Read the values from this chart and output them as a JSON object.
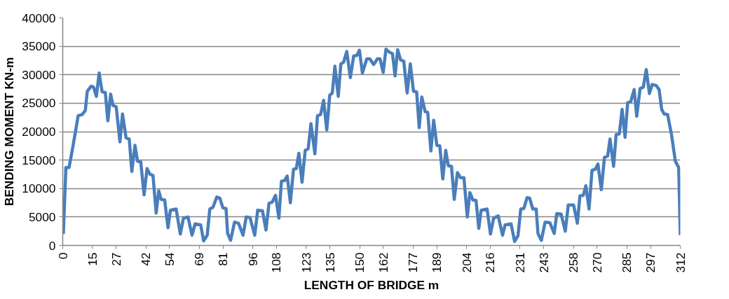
{
  "chart_data": {
    "type": "line",
    "xlabel": "LENGTH OF BRIDGE m",
    "ylabel": "BENDING MOMENT KN-m",
    "xlim": [
      0,
      312
    ],
    "xticks": [
      0,
      15,
      27,
      42,
      54,
      69,
      81,
      96,
      108,
      123,
      135,
      150,
      162,
      177,
      189,
      204,
      216,
      231,
      243,
      258,
      270,
      285,
      297,
      312
    ],
    "ylim": [
      0,
      40000
    ],
    "yticks": [
      0,
      5000,
      10000,
      15000,
      20000,
      25000,
      30000,
      35000,
      40000
    ],
    "grid": "y",
    "marker": "none",
    "line_style": "solid",
    "series": [
      {
        "color": "#4a7ebb",
        "x": [
          0.3,
          1.6,
          3.2,
          5.2,
          7.8,
          9.8,
          11.4,
          12.4,
          14.4,
          15.6,
          17,
          18.4,
          19.9,
          21.5,
          22.8,
          24.2,
          25.4,
          27,
          28.9,
          30.2,
          32,
          33.6,
          34.9,
          36.5,
          37.8,
          39.4,
          41.1,
          42.6,
          44.1,
          45.6,
          47.2,
          48.5,
          49.7,
          51.5,
          53.2,
          54.4,
          57.3,
          59.4,
          61,
          63.3,
          65.3,
          66.9,
          69.7,
          71.2,
          73,
          74.3,
          75.9,
          77.8,
          79.4,
          80.9,
          82.5,
          83.3,
          84.8,
          86.8,
          88.8,
          91.1,
          92.7,
          94.6,
          97,
          98.5,
          100.9,
          102.7,
          104.2,
          105.8,
          107.5,
          109.2,
          110.5,
          112.1,
          113.4,
          115,
          116.6,
          118,
          119.3,
          120.9,
          122.5,
          124,
          125.4,
          127.4,
          128.7,
          130.3,
          131.8,
          133.4,
          134.9,
          136.2,
          137.5,
          139.2,
          140.5,
          141.9,
          143.5,
          145.3,
          147,
          148.6,
          149.9,
          151.4,
          153.6,
          155.1,
          157.1,
          159,
          160.3,
          161.9,
          163.3,
          164.9,
          166.6,
          167.9,
          169.2,
          170.7,
          172.3,
          174,
          175.6,
          177.2,
          178.8,
          180.1,
          181.4,
          183.1,
          184.4,
          186,
          187.4,
          189,
          190.5,
          192,
          193.5,
          194.8,
          196.4,
          197.8,
          199.4,
          201,
          202.7,
          204.4,
          205.7,
          207.2,
          208.8,
          210.2,
          211.4,
          214.4,
          216.1,
          217.7,
          220,
          222.2,
          223.5,
          226.5,
          228.3,
          230,
          231.4,
          233,
          234.6,
          235.9,
          237.5,
          239.2,
          240.1,
          241.8,
          243.7,
          246.1,
          248.3,
          249.6,
          251.8,
          253.9,
          255.4,
          258.1,
          260,
          261.3,
          263,
          264.3,
          265.9,
          267.4,
          269.1,
          270.4,
          272.1,
          273.7,
          275.3,
          276.5,
          278.3,
          279.6,
          281.2,
          282.6,
          284.1,
          285.4,
          287,
          288.7,
          290,
          291.7,
          293.3,
          294.8,
          296.4,
          297.8,
          299.8,
          301.3,
          302.6,
          303.9,
          305.6,
          307.6,
          309.5,
          311.2,
          312
        ],
        "values": [
          2000,
          13700,
          13700,
          17500,
          22800,
          23000,
          23700,
          27100,
          28000,
          27800,
          26200,
          30300,
          27000,
          26900,
          21900,
          26600,
          24600,
          24400,
          18200,
          23100,
          18900,
          18700,
          13000,
          17600,
          14800,
          14700,
          8900,
          13500,
          12500,
          12300,
          5700,
          9600,
          8100,
          8000,
          3100,
          6200,
          6400,
          2000,
          4800,
          5000,
          1800,
          3800,
          3600,
          800,
          1800,
          6400,
          6700,
          8500,
          8300,
          6600,
          6500,
          2100,
          900,
          4100,
          3900,
          1800,
          5000,
          4900,
          1800,
          6200,
          6100,
          2700,
          7400,
          7600,
          8800,
          4800,
          11300,
          11400,
          12200,
          7500,
          13400,
          13500,
          16200,
          11100,
          16700,
          17000,
          21400,
          16100,
          22800,
          23000,
          25500,
          20300,
          26400,
          26800,
          31500,
          26200,
          31900,
          32200,
          34100,
          29500,
          33300,
          33400,
          34300,
          30300,
          32800,
          32800,
          31800,
          32800,
          32800,
          30400,
          34500,
          34000,
          33700,
          29800,
          34400,
          32600,
          32400,
          26800,
          31900,
          27100,
          27000,
          20700,
          26100,
          23500,
          23400,
          16600,
          22000,
          17600,
          17500,
          11700,
          16700,
          14000,
          13900,
          8100,
          12800,
          11900,
          11900,
          5000,
          9300,
          8000,
          7900,
          3000,
          6200,
          6400,
          2000,
          4800,
          5200,
          1800,
          3600,
          3800,
          700,
          1700,
          6400,
          6500,
          8400,
          8300,
          6400,
          6400,
          2100,
          900,
          4100,
          4000,
          2100,
          5600,
          5500,
          2500,
          7100,
          7100,
          3900,
          8700,
          8800,
          10500,
          6400,
          13200,
          13400,
          14300,
          9800,
          15500,
          15700,
          18700,
          13900,
          19500,
          19600,
          23900,
          19000,
          25100,
          25300,
          27400,
          22700,
          27600,
          27800,
          30900,
          26700,
          28300,
          28100,
          27400,
          23900,
          23100,
          23000,
          19400,
          14800,
          13700,
          1800
        ]
      }
    ]
  }
}
